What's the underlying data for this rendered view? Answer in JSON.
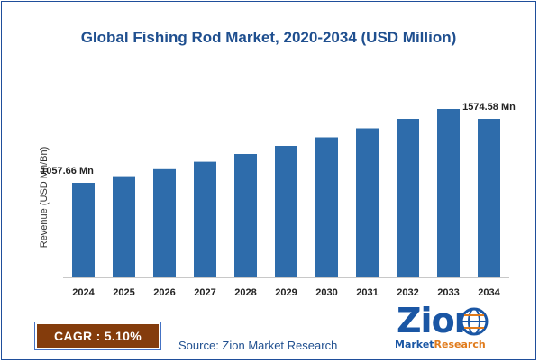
{
  "title": "Global Fishing Rod Market, 2020-2034 (USD Million)",
  "cagr": "CAGR :  5.10%",
  "source": "Source: Zion Market Research",
  "logo": {
    "word": "Zion",
    "sub_left": "Market",
    "sub_right": "Research"
  },
  "colors": {
    "bar": "#2e6cab",
    "title": "#1f4f8f",
    "cagr_bg": "#843c0c"
  },
  "chart_data": {
    "type": "bar",
    "title": "Global Fishing Rod Market, 2020-2034 (USD Million)",
    "xlabel": "",
    "ylabel": "Revenue (USD Mn/Bn)",
    "categories": [
      "2024",
      "2025",
      "2026",
      "2027",
      "2028",
      "2029",
      "2030",
      "2031",
      "2032",
      "2033",
      "2034"
    ],
    "values": [
      1057.66,
      1111.6,
      1168.3,
      1227.9,
      1290.5,
      1356.3,
      1425.5,
      1498.2,
      1574.6,
      1655.0,
      1574.58
    ],
    "data_labels": [
      {
        "index": 0,
        "text": "1057.66 Mn"
      },
      {
        "index": 10,
        "text": "1574.58 Mn"
      }
    ],
    "grid": false,
    "legend": "none"
  }
}
